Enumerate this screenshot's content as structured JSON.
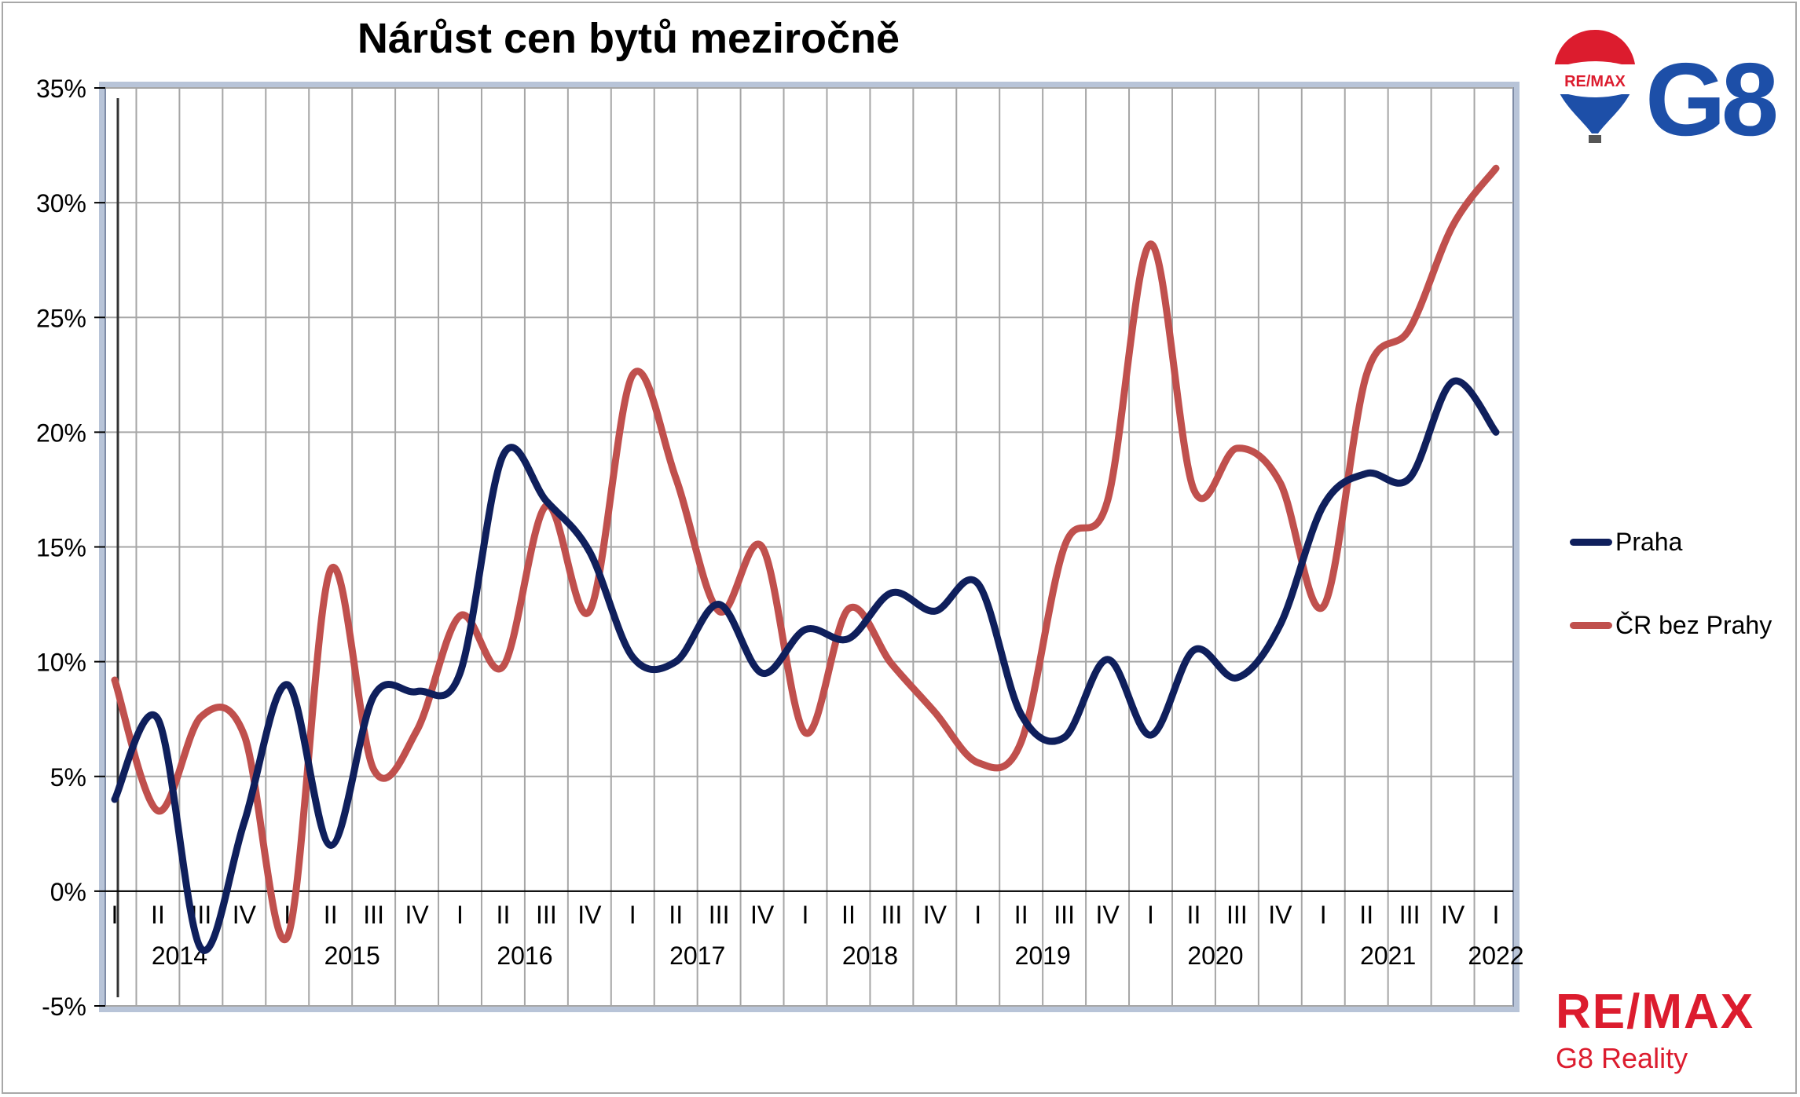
{
  "chart_data": {
    "type": "line",
    "title": "Nárůst cen bytů meziročně",
    "xlabel": "",
    "ylabel": "",
    "ylim": [
      -5,
      35
    ],
    "y_ticks": [
      "35%",
      "30%",
      "25%",
      "20%",
      "15%",
      "10%",
      "5%",
      "0%",
      "-5%"
    ],
    "grid": true,
    "legend_position": "right",
    "quarters": [
      "I",
      "II",
      "III",
      "IV",
      "I",
      "II",
      "III",
      "IV",
      "I",
      "II",
      "III",
      "IV",
      "I",
      "II",
      "III",
      "IV",
      "I",
      "II",
      "III",
      "IV",
      "I",
      "II",
      "III",
      "IV",
      "I",
      "II",
      "III",
      "IV",
      "I",
      "II",
      "III",
      "IV",
      "I"
    ],
    "years": [
      "2014",
      "2015",
      "2016",
      "2017",
      "2018",
      "2019",
      "2020",
      "2021",
      "2022"
    ],
    "series": [
      {
        "name": "Praha",
        "color": "#0f1f5c",
        "values": [
          4.0,
          7.5,
          -2.5,
          3.0,
          9.0,
          2.0,
          8.5,
          8.7,
          9.5,
          19.0,
          17.0,
          14.8,
          10.2,
          10.0,
          12.5,
          9.5,
          11.4,
          11.0,
          13.0,
          12.2,
          13.4,
          7.7,
          6.7,
          10.1,
          6.8,
          10.5,
          9.3,
          11.6,
          16.8,
          18.2,
          18.0,
          22.2,
          20.0
        ]
      },
      {
        "name": "ČR bez Prahy",
        "color": "#c0504d",
        "values": [
          9.2,
          3.5,
          7.6,
          6.8,
          -2.0,
          14.0,
          5.3,
          7.0,
          12.0,
          9.8,
          16.8,
          12.2,
          22.5,
          18.0,
          12.2,
          15.0,
          6.9,
          12.3,
          9.9,
          7.8,
          5.6,
          6.5,
          15.0,
          17.0,
          28.2,
          17.5,
          19.3,
          17.8,
          12.4,
          22.5,
          24.5,
          29.0,
          31.5
        ]
      }
    ]
  },
  "logos": {
    "balloon_text": "RE/MAX",
    "g8_text": "G8",
    "brand_word": "RE/MAX",
    "brand_sub": "G8 Reality",
    "brand_color": "#dc1c2e",
    "g8_color": "#1d4fa8"
  }
}
